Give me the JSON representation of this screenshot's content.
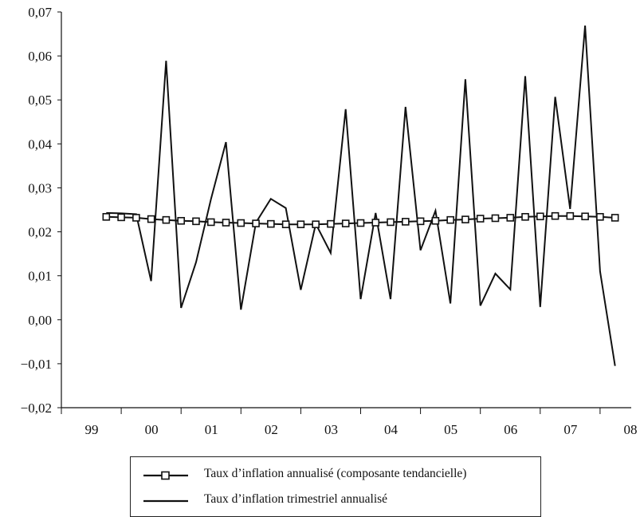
{
  "chart_data": {
    "type": "line",
    "x_tick_labels": [
      "99",
      "00",
      "01",
      "02",
      "03",
      "04",
      "05",
      "06",
      "07",
      "08"
    ],
    "y_tick_labels": [
      "−0,02",
      "−0,01",
      "0,00",
      "0,01",
      "0,02",
      "0,03",
      "0,04",
      "0,05",
      "0,06",
      "0,07"
    ],
    "ylim": [
      -0.02,
      0.07
    ],
    "xlim": [
      1998.0,
      2008.4
    ],
    "grid": false,
    "legend_position": "bottom",
    "colors": {
      "line": "#111111",
      "marker_fill": "#ffffff",
      "axis": "#111111"
    },
    "series": [
      {
        "name": "Taux d’inflation annualisé (composante tendancielle)",
        "style": "line-square-markers",
        "x": [
          1998.75,
          1999.0,
          1999.25,
          1999.5,
          1999.75,
          2000.0,
          2000.25,
          2000.5,
          2000.75,
          2001.0,
          2001.25,
          2001.5,
          2001.75,
          2002.0,
          2002.25,
          2002.5,
          2002.75,
          2003.0,
          2003.25,
          2003.5,
          2003.75,
          2004.0,
          2004.25,
          2004.5,
          2004.75,
          2005.0,
          2005.25,
          2005.5,
          2005.75,
          2006.0,
          2006.25,
          2006.5,
          2006.75,
          2007.0,
          2007.25
        ],
        "values": [
          0.0234,
          0.0233,
          0.0232,
          0.0229,
          0.0227,
          0.0225,
          0.0224,
          0.0222,
          0.0221,
          0.022,
          0.0219,
          0.0218,
          0.0217,
          0.0217,
          0.0217,
          0.0218,
          0.0219,
          0.022,
          0.0221,
          0.0222,
          0.0223,
          0.0224,
          0.0225,
          0.0227,
          0.0228,
          0.023,
          0.0231,
          0.0232,
          0.0234,
          0.0235,
          0.0236,
          0.0236,
          0.0235,
          0.0234,
          0.0232
        ]
      },
      {
        "name": "Taux d’inflation trimestriel annualisé",
        "style": "line",
        "x": [
          1998.75,
          1999.0,
          1999.25,
          1999.5,
          1999.75,
          2000.0,
          2000.25,
          2000.5,
          2000.75,
          2001.0,
          2001.25,
          2001.5,
          2001.75,
          2002.0,
          2002.25,
          2002.5,
          2002.75,
          2003.0,
          2003.25,
          2003.5,
          2003.75,
          2004.0,
          2004.25,
          2004.5,
          2004.75,
          2005.0,
          2005.25,
          2005.5,
          2005.75,
          2006.0,
          2006.25,
          2006.5,
          2006.75,
          2007.0,
          2007.25
        ],
        "values": [
          0.0243,
          0.0242,
          0.024,
          0.0088,
          0.0589,
          0.0027,
          0.0131,
          0.0275,
          0.0404,
          0.0023,
          0.0221,
          0.0275,
          0.0254,
          0.0068,
          0.0218,
          0.0152,
          0.0479,
          0.0047,
          0.0243,
          0.0047,
          0.0484,
          0.0158,
          0.0248,
          0.0037,
          0.0547,
          0.0032,
          0.0105,
          0.0069,
          0.0554,
          0.0029,
          0.0507,
          0.0252,
          0.0669,
          0.011,
          -0.0105
        ]
      }
    ]
  }
}
